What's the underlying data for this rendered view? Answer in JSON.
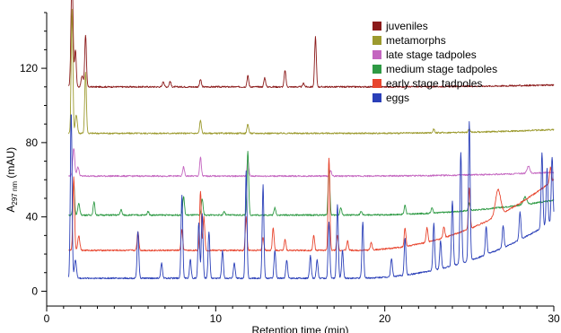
{
  "chart_data": {
    "type": "line",
    "xlabel": "Retention time (min)",
    "ylabel": {
      "main": "A",
      "subscript": "297 nm",
      "unit": " (mAU)"
    },
    "xlim": [
      0,
      30
    ],
    "ylim": [
      -8,
      150
    ],
    "x_ticks": [
      0,
      10,
      20,
      30
    ],
    "y_ticks": [
      0,
      40,
      80,
      120
    ],
    "grid": false,
    "legend_position": "top-right",
    "series": [
      {
        "name": "juveniles",
        "color": "#8b1a1a",
        "baseline": 110,
        "end": 111,
        "peaks": [
          [
            1.5,
            60,
            0.06
          ],
          [
            1.7,
            20,
            0.05
          ],
          [
            2.3,
            28,
            0.05
          ],
          [
            2.1,
            6,
            0.06
          ],
          [
            6.9,
            3,
            0.05
          ],
          [
            7.3,
            3,
            0.05
          ],
          [
            9.1,
            4,
            0.05
          ],
          [
            11.9,
            6,
            0.05
          ],
          [
            12.9,
            5,
            0.05
          ],
          [
            14.1,
            9,
            0.05
          ],
          [
            15.2,
            2,
            0.05
          ],
          [
            15.9,
            27,
            0.05
          ]
        ]
      },
      {
        "name": "metamorphs",
        "color": "#9c9a2e",
        "baseline": 85,
        "end": 87,
        "peaks": [
          [
            1.5,
            67,
            0.05
          ],
          [
            1.75,
            10,
            0.06
          ],
          [
            2.3,
            33,
            0.05
          ],
          [
            9.1,
            7,
            0.05
          ],
          [
            11.9,
            5,
            0.05
          ],
          [
            22.9,
            2,
            0.05
          ],
          [
            25.0,
            2,
            0.05
          ]
        ]
      },
      {
        "name": "late stage tadpoles",
        "color": "#c466c0",
        "baseline": 62,
        "end": 64,
        "peaks": [
          [
            1.6,
            15,
            0.06
          ],
          [
            1.85,
            5,
            0.06
          ],
          [
            8.1,
            5,
            0.05
          ],
          [
            9.1,
            10,
            0.05
          ],
          [
            11.9,
            9,
            0.05
          ],
          [
            16.8,
            3,
            0.05
          ],
          [
            28.5,
            4,
            0.08
          ]
        ]
      },
      {
        "name": "medium stage tadpoles",
        "color": "#2e9a44",
        "baseline": 41,
        "end": 49,
        "peaks": [
          [
            1.6,
            18,
            0.05
          ],
          [
            1.9,
            6,
            0.06
          ],
          [
            2.8,
            7,
            0.05
          ],
          [
            4.4,
            3,
            0.05
          ],
          [
            6.0,
            2,
            0.05
          ],
          [
            8.1,
            10,
            0.05
          ],
          [
            9.2,
            9,
            0.05
          ],
          [
            10.5,
            2,
            0.05
          ],
          [
            11.9,
            34,
            0.05
          ],
          [
            13.5,
            4,
            0.05
          ],
          [
            16.7,
            26,
            0.05
          ],
          [
            17.4,
            4,
            0.05
          ],
          [
            18.6,
            2,
            0.05
          ],
          [
            21.2,
            5,
            0.05
          ],
          [
            22.8,
            3,
            0.05
          ],
          [
            25.0,
            4,
            0.05
          ],
          [
            28.3,
            4,
            0.1
          ]
        ]
      },
      {
        "name": "early stage tadpoles",
        "color": "#e8452e",
        "baseline": 22,
        "end": 60,
        "peaks": [
          [
            1.6,
            40,
            0.05
          ],
          [
            1.9,
            8,
            0.06
          ],
          [
            5.4,
            10,
            0.05
          ],
          [
            8.0,
            11,
            0.05
          ],
          [
            9.1,
            32,
            0.05
          ],
          [
            9.3,
            18,
            0.05
          ],
          [
            11.8,
            18,
            0.05
          ],
          [
            12.8,
            7,
            0.05
          ],
          [
            13.4,
            12,
            0.05
          ],
          [
            14.1,
            6,
            0.05
          ],
          [
            15.8,
            8,
            0.05
          ],
          [
            16.7,
            50,
            0.05
          ],
          [
            17.2,
            8,
            0.05
          ],
          [
            17.8,
            5,
            0.05
          ],
          [
            19.2,
            4,
            0.05
          ],
          [
            21.2,
            10,
            0.05
          ],
          [
            22.5,
            8,
            0.05
          ],
          [
            23.5,
            6,
            0.05
          ],
          [
            25.0,
            22,
            0.05
          ],
          [
            26.7,
            14,
            0.15
          ],
          [
            29.8,
            8,
            0.05
          ]
        ]
      },
      {
        "name": "eggs",
        "color": "#2a3fb8",
        "baseline": 7,
        "end": 38,
        "peaks": [
          [
            1.45,
            90,
            0.05
          ],
          [
            1.7,
            10,
            0.06
          ],
          [
            5.4,
            25,
            0.05
          ],
          [
            6.8,
            8,
            0.05
          ],
          [
            8.0,
            45,
            0.05
          ],
          [
            8.5,
            10,
            0.05
          ],
          [
            9.0,
            30,
            0.05
          ],
          [
            9.2,
            35,
            0.05
          ],
          [
            9.6,
            25,
            0.05
          ],
          [
            10.4,
            15,
            0.05
          ],
          [
            11.1,
            8,
            0.05
          ],
          [
            11.8,
            58,
            0.05
          ],
          [
            12.8,
            50,
            0.05
          ],
          [
            13.5,
            15,
            0.05
          ],
          [
            14.2,
            10,
            0.05
          ],
          [
            15.6,
            12,
            0.05
          ],
          [
            16.0,
            10,
            0.05
          ],
          [
            16.7,
            30,
            0.05
          ],
          [
            17.2,
            40,
            0.05
          ],
          [
            17.5,
            15,
            0.05
          ],
          [
            18.7,
            30,
            0.05
          ],
          [
            20.4,
            10,
            0.05
          ],
          [
            21.2,
            20,
            0.05
          ],
          [
            22.9,
            25,
            0.05
          ],
          [
            23.3,
            15,
            0.05
          ],
          [
            24.0,
            35,
            0.05
          ],
          [
            24.5,
            60,
            0.05
          ],
          [
            25.0,
            75,
            0.05
          ],
          [
            26.0,
            15,
            0.05
          ],
          [
            27.0,
            12,
            0.05
          ],
          [
            28.0,
            15,
            0.05
          ],
          [
            29.3,
            40,
            0.05
          ],
          [
            29.6,
            30,
            0.05
          ],
          [
            29.9,
            35,
            0.05
          ]
        ]
      }
    ]
  }
}
